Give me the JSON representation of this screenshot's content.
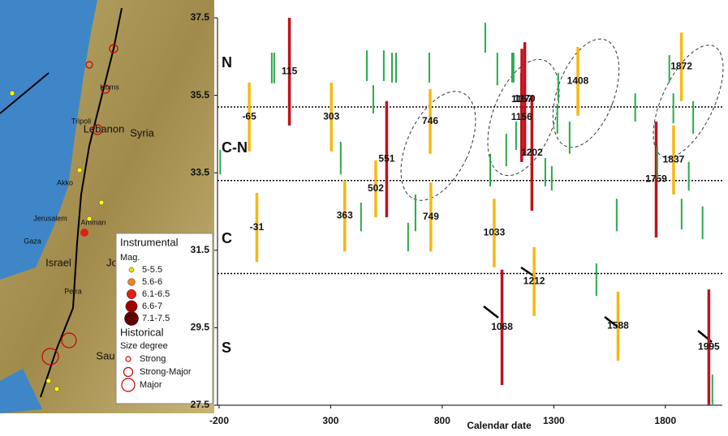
{
  "chart_data": {
    "type": "range",
    "x_label": "Calendar date",
    "xlim": [
      -200,
      2030
    ],
    "ylim": [
      27.5,
      37.5
    ],
    "xticks": [
      -200,
      300,
      800,
      1300,
      1800
    ],
    "yticks": [
      27.5,
      29.5,
      31.5,
      33.5,
      35.5,
      37.5
    ],
    "reference_lines": [
      35.2,
      33.3,
      30.9
    ],
    "zones": [
      "N",
      "C-N",
      "C",
      "S"
    ],
    "series": [
      {
        "color": "#c0121b",
        "x": [
          115,
          551,
          1157,
          1170,
          1156,
          1202,
          1759,
          1068,
          1995
        ],
        "low": [
          34.72,
          32.35,
          34.09,
          33.94,
          33.78,
          32.52,
          31.83,
          28.02,
          27.5
        ],
        "high": [
          37.5,
          35.35,
          36.7,
          36.87,
          36.08,
          35.49,
          34.82,
          31.0,
          30.49
        ]
      },
      {
        "color": "#f6b90f",
        "x": [
          -65,
          303,
          746,
          502,
          363,
          749,
          -31,
          1033,
          1408,
          1872,
          1837,
          1212,
          1588
        ],
        "low": [
          34.05,
          34.05,
          33.99,
          32.35,
          31.47,
          31.47,
          31.2,
          31.06,
          34.97,
          35.35,
          32.94,
          29.8,
          28.65
        ],
        "high": [
          35.83,
          35.83,
          35.66,
          33.82,
          33.3,
          33.25,
          32.98,
          32.83,
          36.75,
          37.12,
          34.72,
          31.58,
          30.43
        ]
      },
      {
        "color": "#2aa84a",
        "x": [
          -195,
          36,
          47,
          345,
          436,
          462,
          491,
          538,
          575,
          593,
          647,
          680,
          742,
          993,
          1015,
          1047,
          1087,
          1113,
          1120,
          1131,
          1262,
          1291,
          1316,
          1320,
          1371,
          1491,
          1582,
          1665,
          1764,
          1818,
          1836,
          1873,
          1905,
          1925,
          1967,
          2011
        ],
        "low": [
          33.46,
          35.81,
          35.81,
          33.46,
          31.99,
          35.87,
          35.03,
          35.87,
          35.83,
          35.83,
          31.47,
          31.99,
          35.83,
          36.6,
          33.15,
          35.76,
          33.67,
          35.83,
          35.83,
          34.09,
          33.15,
          33.04,
          34.51,
          35.35,
          33.99,
          30.32,
          31.99,
          34.82,
          33.36,
          35.83,
          34.78,
          32.04,
          33.04,
          34.51,
          31.79,
          27.5
        ],
        "high": [
          34.09,
          36.6,
          36.6,
          34.3,
          32.73,
          36.66,
          35.76,
          36.66,
          36.6,
          36.6,
          32.21,
          32.94,
          36.6,
          37.37,
          33.99,
          36.6,
          34.51,
          36.6,
          36.6,
          34.82,
          33.88,
          33.67,
          35.28,
          36.08,
          34.82,
          31.16,
          32.83,
          35.55,
          34.19,
          36.54,
          35.55,
          32.83,
          33.78,
          35.35,
          32.63,
          28.29
        ]
      }
    ]
  },
  "map": {
    "places": [
      "Syria",
      "Lebanon",
      "Israel",
      "Jo",
      "Sau",
      "Tripoli",
      "Homs",
      "Akko",
      "Gaza",
      "Amman",
      "Petra",
      "Jerusalem"
    ],
    "legend": {
      "instrumental": "Instrumental",
      "mag": "Mag.",
      "mag_items": [
        {
          "label": "5-5.5",
          "color": "#f0e000"
        },
        {
          "label": "5.6-6",
          "color": "#f08020"
        },
        {
          "label": "6.1-6.5",
          "color": "#e02010"
        },
        {
          "label": "6.6-7",
          "color": "#a00000"
        },
        {
          "label": "7.1-7.5",
          "color": "#600000"
        }
      ],
      "historical": "Historical",
      "size": "Size degree",
      "size_items": [
        "Strong",
        "Strong-Major",
        "Major"
      ]
    }
  }
}
